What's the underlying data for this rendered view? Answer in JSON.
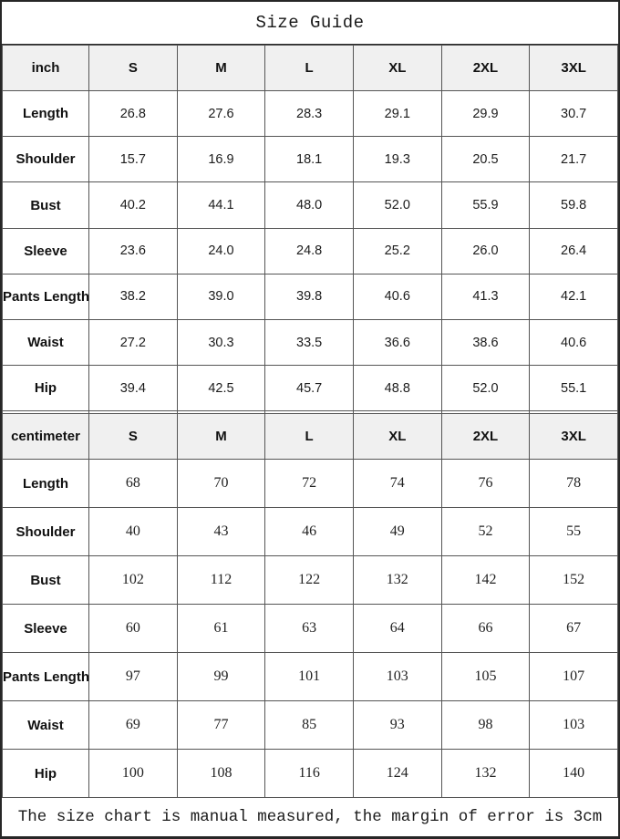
{
  "title": "Size Guide",
  "footer_note": "The size chart is manual measured, the margin of error is 3cm",
  "colors": {
    "header_background": "#f0f0f0",
    "border": "#555555",
    "outer_border": "#262626",
    "text": "#000000"
  },
  "sizes": [
    "S",
    "M",
    "L",
    "XL",
    "2XL",
    "3XL"
  ],
  "sections": [
    {
      "unit": "inch",
      "rows": [
        {
          "label": "Length",
          "values": [
            "26.8",
            "27.6",
            "28.3",
            "29.1",
            "29.9",
            "30.7"
          ]
        },
        {
          "label": "Shoulder",
          "values": [
            "15.7",
            "16.9",
            "18.1",
            "19.3",
            "20.5",
            "21.7"
          ]
        },
        {
          "label": "Bust",
          "values": [
            "40.2",
            "44.1",
            "48.0",
            "52.0",
            "55.9",
            "59.8"
          ]
        },
        {
          "label": "Sleeve",
          "values": [
            "23.6",
            "24.0",
            "24.8",
            "25.2",
            "26.0",
            "26.4"
          ]
        },
        {
          "label": "Pants Length",
          "values": [
            "38.2",
            "39.0",
            "39.8",
            "40.6",
            "41.3",
            "42.1"
          ]
        },
        {
          "label": "Waist",
          "values": [
            "27.2",
            "30.3",
            "33.5",
            "36.6",
            "38.6",
            "40.6"
          ]
        },
        {
          "label": "Hip",
          "values": [
            "39.4",
            "42.5",
            "45.7",
            "48.8",
            "52.0",
            "55.1"
          ]
        }
      ]
    },
    {
      "unit": "centimeter",
      "rows": [
        {
          "label": "Length",
          "values": [
            "68",
            "70",
            "72",
            "74",
            "76",
            "78"
          ]
        },
        {
          "label": "Shoulder",
          "values": [
            "40",
            "43",
            "46",
            "49",
            "52",
            "55"
          ]
        },
        {
          "label": "Bust",
          "values": [
            "102",
            "112",
            "122",
            "132",
            "142",
            "152"
          ]
        },
        {
          "label": "Sleeve",
          "values": [
            "60",
            "61",
            "63",
            "64",
            "66",
            "67"
          ]
        },
        {
          "label": "Pants Length",
          "values": [
            "97",
            "99",
            "101",
            "103",
            "105",
            "107"
          ]
        },
        {
          "label": "Waist",
          "values": [
            "69",
            "77",
            "85",
            "93",
            "98",
            "103"
          ]
        },
        {
          "label": "Hip",
          "values": [
            "100",
            "108",
            "116",
            "124",
            "132",
            "140"
          ]
        }
      ]
    }
  ]
}
